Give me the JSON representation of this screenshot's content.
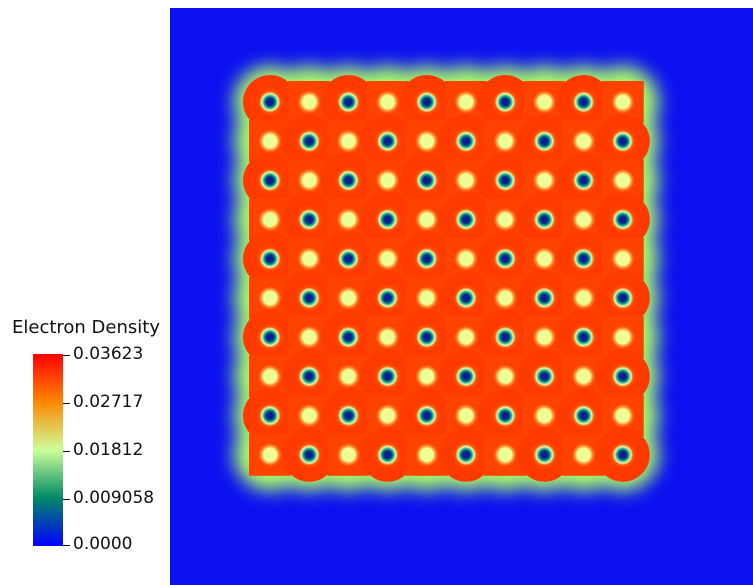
{
  "legend": {
    "title": "Electron Density",
    "ticks": [
      "0.03623",
      "0.02717",
      "0.01812",
      "0.009058",
      "0.0000"
    ]
  },
  "colors": {
    "background": "#0a10f0",
    "low": "#0000ff",
    "mid": "#ccff99",
    "high": "#ff2200"
  },
  "lattice": {
    "columns": 10,
    "rows": 10
  }
}
